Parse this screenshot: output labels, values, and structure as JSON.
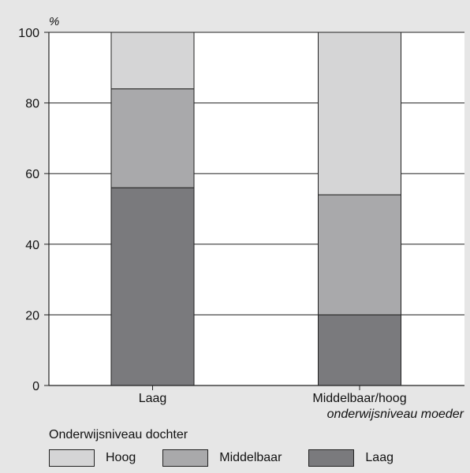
{
  "chart_data": {
    "type": "bar",
    "stacked": true,
    "ylabel": "%",
    "xlabel": "onderwijsniveau moeder",
    "ylim": [
      0,
      100
    ],
    "yticks": [
      0,
      20,
      40,
      60,
      80,
      100
    ],
    "grid": true,
    "categories": [
      "Laag",
      "Middelbaar/hoog"
    ],
    "series": [
      {
        "name": "Laag",
        "values": [
          56,
          20
        ],
        "color": "#7a7a7d"
      },
      {
        "name": "Middelbaar",
        "values": [
          28,
          34
        ],
        "color": "#a9a9ab"
      },
      {
        "name": "Hoog",
        "values": [
          16,
          46
        ],
        "color": "#d5d5d6"
      }
    ],
    "legend": {
      "title": "Onderwijsniveau dochter",
      "placement": "bottom",
      "items": [
        {
          "label": "Hoog",
          "color": "#d5d5d6"
        },
        {
          "label": "Middelbaar",
          "color": "#a9a9ab"
        },
        {
          "label": "Laag",
          "color": "#7a7a7d"
        }
      ]
    }
  }
}
